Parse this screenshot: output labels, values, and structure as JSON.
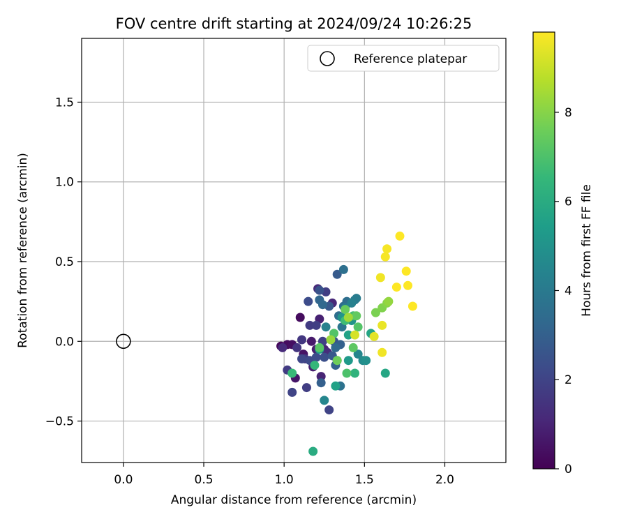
{
  "chart_data": {
    "type": "scatter",
    "title": "FOV centre drift starting at 2024/09/24 10:26:25",
    "xlabel": "Angular distance from reference (arcmin)",
    "ylabel": "Rotation from reference (arcmin)",
    "xlim": [
      -0.26,
      2.38
    ],
    "ylim": [
      -0.76,
      1.9
    ],
    "x_ticks": [
      0.0,
      0.5,
      1.0,
      1.5,
      2.0
    ],
    "x_tick_labels": [
      "0.0",
      "0.5",
      "1.0",
      "1.5",
      "2.0"
    ],
    "y_ticks": [
      -0.5,
      0.0,
      0.5,
      1.0,
      1.5
    ],
    "y_tick_labels": [
      "−0.5",
      "0.0",
      "0.5",
      "1.0",
      "1.5"
    ],
    "grid": true,
    "legend": {
      "position": "top-right",
      "entries": [
        "Reference platepar"
      ]
    },
    "reference_point": {
      "x": 0.0,
      "y": 0.0,
      "marker": "open-circle"
    },
    "colorbar": {
      "label": "Hours from first FF file",
      "range": [
        0,
        9.8
      ],
      "ticks": [
        0,
        2,
        4,
        6,
        8
      ],
      "colormap": "viridis",
      "colormap_stops": [
        "#440154",
        "#482878",
        "#3e4989",
        "#31688e",
        "#26828e",
        "#1f9e89",
        "#35b779",
        "#6ece58",
        "#b5de2b",
        "#fde725"
      ]
    },
    "points": [
      {
        "x": 0.98,
        "y": -0.03,
        "h": 0.2
      },
      {
        "x": 1.02,
        "y": -0.02,
        "h": 0.3
      },
      {
        "x": 1.05,
        "y": -0.02,
        "h": 0.4
      },
      {
        "x": 1.1,
        "y": 0.15,
        "h": 0.3
      },
      {
        "x": 1.12,
        "y": -0.08,
        "h": 0.5
      },
      {
        "x": 1.07,
        "y": -0.23,
        "h": 0.6
      },
      {
        "x": 1.17,
        "y": 0.0,
        "h": 0.7
      },
      {
        "x": 1.2,
        "y": -0.05,
        "h": 0.8
      },
      {
        "x": 1.22,
        "y": 0.14,
        "h": 0.9
      },
      {
        "x": 1.25,
        "y": -0.05,
        "h": 1.0
      },
      {
        "x": 1.18,
        "y": -0.16,
        "h": 0.8
      },
      {
        "x": 1.23,
        "y": -0.22,
        "h": 1.0
      },
      {
        "x": 1.3,
        "y": 0.24,
        "h": 1.1
      },
      {
        "x": 1.21,
        "y": 0.33,
        "h": 1.2
      },
      {
        "x": 1.27,
        "y": -0.07,
        "h": 1.3
      },
      {
        "x": 0.99,
        "y": -0.04,
        "h": 1.2
      },
      {
        "x": 1.08,
        "y": -0.04,
        "h": 1.5
      },
      {
        "x": 1.13,
        "y": -0.11,
        "h": 1.6
      },
      {
        "x": 1.16,
        "y": 0.1,
        "h": 1.7
      },
      {
        "x": 1.2,
        "y": 0.1,
        "h": 1.8
      },
      {
        "x": 1.24,
        "y": 0.0,
        "h": 1.9
      },
      {
        "x": 1.26,
        "y": 0.31,
        "h": 1.8
      },
      {
        "x": 1.02,
        "y": -0.18,
        "h": 1.7
      },
      {
        "x": 1.11,
        "y": 0.01,
        "h": 1.6
      },
      {
        "x": 1.14,
        "y": -0.29,
        "h": 1.8
      },
      {
        "x": 1.05,
        "y": -0.32,
        "h": 2.0
      },
      {
        "x": 1.28,
        "y": -0.43,
        "h": 2.0
      },
      {
        "x": 1.11,
        "y": -0.11,
        "h": 2.1
      },
      {
        "x": 1.16,
        "y": -0.12,
        "h": 2.2
      },
      {
        "x": 1.2,
        "y": -0.1,
        "h": 2.3
      },
      {
        "x": 1.25,
        "y": -0.1,
        "h": 2.4
      },
      {
        "x": 1.15,
        "y": 0.25,
        "h": 2.3
      },
      {
        "x": 1.22,
        "y": 0.32,
        "h": 2.5
      },
      {
        "x": 1.31,
        "y": 0.0,
        "h": 2.5
      },
      {
        "x": 1.33,
        "y": 0.42,
        "h": 2.8
      },
      {
        "x": 1.28,
        "y": 0.22,
        "h": 2.7
      },
      {
        "x": 1.3,
        "y": -0.09,
        "h": 2.7
      },
      {
        "x": 1.33,
        "y": -0.12,
        "h": 2.9
      },
      {
        "x": 1.35,
        "y": -0.02,
        "h": 3.0
      },
      {
        "x": 1.23,
        "y": -0.26,
        "h": 3.0
      },
      {
        "x": 1.32,
        "y": -0.15,
        "h": 3.1
      },
      {
        "x": 1.22,
        "y": 0.26,
        "h": 3.2
      },
      {
        "x": 1.24,
        "y": 0.23,
        "h": 3.3
      },
      {
        "x": 1.32,
        "y": -0.04,
        "h": 3.3
      },
      {
        "x": 1.37,
        "y": 0.22,
        "h": 3.4
      },
      {
        "x": 1.39,
        "y": 0.25,
        "h": 3.5
      },
      {
        "x": 1.34,
        "y": 0.16,
        "h": 3.5
      },
      {
        "x": 1.37,
        "y": 0.45,
        "h": 3.6
      },
      {
        "x": 1.35,
        "y": -0.28,
        "h": 3.7
      },
      {
        "x": 1.36,
        "y": 0.09,
        "h": 3.8
      },
      {
        "x": 1.4,
        "y": 0.14,
        "h": 3.9
      },
      {
        "x": 1.44,
        "y": 0.26,
        "h": 4.0
      },
      {
        "x": 1.45,
        "y": 0.27,
        "h": 4.1
      },
      {
        "x": 1.38,
        "y": 0.21,
        "h": 4.2
      },
      {
        "x": 1.26,
        "y": 0.09,
        "h": 4.3
      },
      {
        "x": 1.42,
        "y": 0.24,
        "h": 4.3
      },
      {
        "x": 1.46,
        "y": -0.08,
        "h": 4.5
      },
      {
        "x": 1.25,
        "y": -0.37,
        "h": 4.5
      },
      {
        "x": 1.49,
        "y": -0.12,
        "h": 4.7
      },
      {
        "x": 1.51,
        "y": -0.12,
        "h": 4.9
      },
      {
        "x": 1.42,
        "y": 0.13,
        "h": 5.0
      },
      {
        "x": 1.36,
        "y": 0.15,
        "h": 5.1
      },
      {
        "x": 1.4,
        "y": -0.12,
        "h": 5.3
      },
      {
        "x": 1.22,
        "y": -0.05,
        "h": 5.5
      },
      {
        "x": 1.32,
        "y": -0.28,
        "h": 5.6
      },
      {
        "x": 1.4,
        "y": 0.04,
        "h": 5.6
      },
      {
        "x": 1.54,
        "y": 0.05,
        "h": 5.7
      },
      {
        "x": 1.63,
        "y": -0.2,
        "h": 5.8
      },
      {
        "x": 1.18,
        "y": -0.69,
        "h": 6.0
      },
      {
        "x": 1.44,
        "y": -0.2,
        "h": 6.3
      },
      {
        "x": 1.19,
        "y": -0.15,
        "h": 6.5
      },
      {
        "x": 1.05,
        "y": -0.2,
        "h": 6.6
      },
      {
        "x": 1.38,
        "y": 0.13,
        "h": 6.7
      },
      {
        "x": 1.43,
        "y": 0.16,
        "h": 6.8
      },
      {
        "x": 1.39,
        "y": -0.2,
        "h": 7.0
      },
      {
        "x": 1.31,
        "y": 0.05,
        "h": 7.1
      },
      {
        "x": 1.46,
        "y": 0.09,
        "h": 7.1
      },
      {
        "x": 1.22,
        "y": -0.04,
        "h": 7.2
      },
      {
        "x": 1.43,
        "y": -0.04,
        "h": 7.3
      },
      {
        "x": 1.45,
        "y": 0.16,
        "h": 7.4
      },
      {
        "x": 1.38,
        "y": 0.2,
        "h": 7.5
      },
      {
        "x": 1.33,
        "y": -0.12,
        "h": 7.6
      },
      {
        "x": 1.57,
        "y": 0.18,
        "h": 7.8
      },
      {
        "x": 1.61,
        "y": 0.21,
        "h": 7.9
      },
      {
        "x": 1.64,
        "y": 0.24,
        "h": 8.0
      },
      {
        "x": 1.65,
        "y": 0.25,
        "h": 8.2
      },
      {
        "x": 1.29,
        "y": 0.01,
        "h": 8.3
      },
      {
        "x": 1.4,
        "y": 0.15,
        "h": 8.4
      },
      {
        "x": 1.44,
        "y": 0.04,
        "h": 9.2
      },
      {
        "x": 1.56,
        "y": 0.03,
        "h": 9.4
      },
      {
        "x": 1.61,
        "y": 0.1,
        "h": 9.5
      },
      {
        "x": 1.61,
        "y": -0.07,
        "h": 9.6
      },
      {
        "x": 1.6,
        "y": 0.4,
        "h": 9.6
      },
      {
        "x": 1.63,
        "y": 0.53,
        "h": 9.7
      },
      {
        "x": 1.64,
        "y": 0.58,
        "h": 9.7
      },
      {
        "x": 1.7,
        "y": 0.34,
        "h": 9.8
      },
      {
        "x": 1.72,
        "y": 0.66,
        "h": 9.8
      },
      {
        "x": 1.76,
        "y": 0.44,
        "h": 9.8
      },
      {
        "x": 1.77,
        "y": 0.35,
        "h": 9.8
      },
      {
        "x": 1.8,
        "y": 0.22,
        "h": 9.8
      }
    ]
  }
}
